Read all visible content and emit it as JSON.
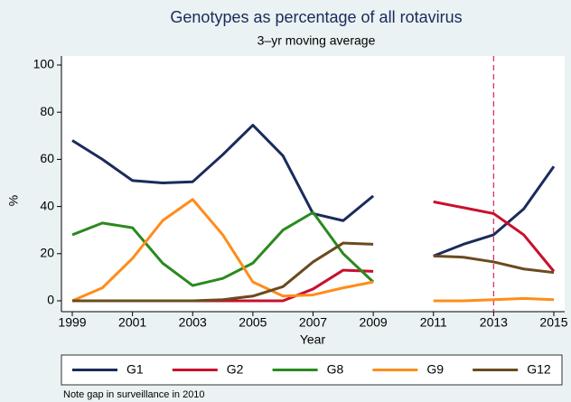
{
  "chart_data": {
    "type": "line",
    "title": "Genotypes as percentage of all rotavirus",
    "subtitle": "3–yr moving average",
    "xlabel": "Year",
    "ylabel": "%",
    "note": "Note gap in surveillance in 2010",
    "x": [
      1999,
      2000,
      2001,
      2002,
      2003,
      2004,
      2005,
      2006,
      2007,
      2008,
      2009,
      2010,
      2011,
      2012,
      2013,
      2014,
      2015
    ],
    "series": [
      {
        "name": "G1",
        "color": "#1a2b5c",
        "values": [
          68,
          60,
          51,
          50,
          50.5,
          62,
          74.5,
          61.5,
          37,
          34,
          44.5,
          null,
          19,
          24,
          28,
          39,
          57
        ]
      },
      {
        "name": "G2",
        "color": "#c8102e",
        "values": [
          0,
          0,
          0,
          0,
          0,
          0,
          0,
          0,
          5,
          13,
          12.5,
          null,
          42,
          39.5,
          37,
          28,
          12.5
        ]
      },
      {
        "name": "G8",
        "color": "#2a8a1e",
        "values": [
          28,
          33,
          31,
          16,
          6.5,
          9.5,
          16,
          30,
          37.5,
          20,
          8,
          null,
          null,
          null,
          null,
          null,
          null
        ]
      },
      {
        "name": "G9",
        "color": "#ff8c1a",
        "values": [
          0,
          5.5,
          18,
          34,
          43,
          28,
          8,
          2,
          2.5,
          5.5,
          8,
          null,
          0,
          0,
          0.5,
          1,
          0.5
        ]
      },
      {
        "name": "G12",
        "color": "#6b4a1e",
        "values": [
          0,
          0,
          0,
          0,
          0,
          0.5,
          2,
          6,
          16.5,
          24.5,
          24,
          null,
          19,
          18.5,
          16.5,
          13.5,
          12
        ]
      }
    ],
    "xlim": [
      1999,
      2015
    ],
    "ylim": [
      0,
      100
    ],
    "xticks": [
      1999,
      2001,
      2003,
      2005,
      2007,
      2009,
      2011,
      2013,
      2015
    ],
    "yticks": [
      0,
      20,
      40,
      60,
      80,
      100
    ],
    "vline": 2013,
    "vline_color": "#d6336c",
    "legend": "bottom"
  }
}
